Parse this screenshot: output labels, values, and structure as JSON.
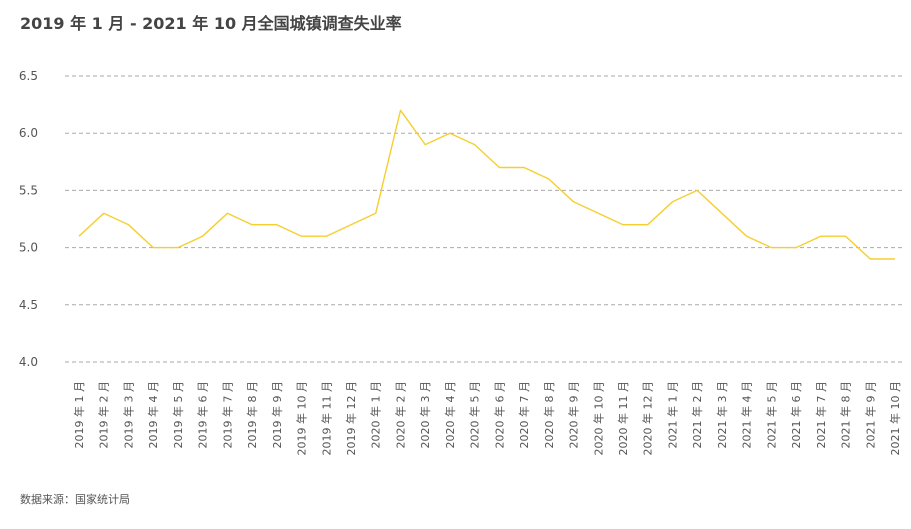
{
  "title": "2019 年 1 月 - 2021 年 10 月全国城镇调查失业率",
  "source": "数据来源：国家统计局",
  "colors": {
    "line": "#F5CF2F",
    "grid": "#AAAAAA",
    "text": "#555555"
  },
  "chart_data": {
    "type": "line",
    "title": "2019 年 1 月 - 2021 年 10 月全国城镇调查失业率",
    "xlabel": "",
    "ylabel": "",
    "ylim": [
      4.0,
      6.5
    ],
    "yticks": [
      "4.0",
      "4.5",
      "5.0",
      "5.5",
      "6.0",
      "6.5"
    ],
    "grid": true,
    "legend": "none",
    "categories": [
      "2019 年 1 月",
      "2019 年 2 月",
      "2019 年 3 月",
      "2019 年 4 月",
      "2019 年 5 月",
      "2019 年 6 月",
      "2019 年 7 月",
      "2019 年 8 月",
      "2019 年 9 月",
      "2019 年 10 月",
      "2019 年 11 月",
      "2019 年 12 月",
      "2020 年 1 月",
      "2020 年 2 月",
      "2020 年 3 月",
      "2020 年 4 月",
      "2020 年 5 月",
      "2020 年 6 月",
      "2020 年 7 月",
      "2020 年 8 月",
      "2020 年 9 月",
      "2020 年 10 月",
      "2020 年 11 月",
      "2020 年 12 月",
      "2021 年 1 月",
      "2021 年 2 月",
      "2021 年 3 月",
      "2021 年 4 月",
      "2021 年 5 月",
      "2021 年 6 月",
      "2021 年 7 月",
      "2021 年 8 月",
      "2021 年 9 月",
      "2021 年 10 月"
    ],
    "series": [
      {
        "values": [
          5.1,
          5.3,
          5.2,
          5.0,
          5.0,
          5.1,
          5.3,
          5.2,
          5.2,
          5.1,
          5.1,
          5.2,
          5.3,
          6.2,
          5.9,
          6.0,
          5.9,
          5.7,
          5.7,
          5.6,
          5.4,
          5.3,
          5.2,
          5.2,
          5.4,
          5.5,
          5.3,
          5.1,
          5.0,
          5.0,
          5.1,
          5.1,
          4.9,
          4.9
        ]
      }
    ]
  }
}
